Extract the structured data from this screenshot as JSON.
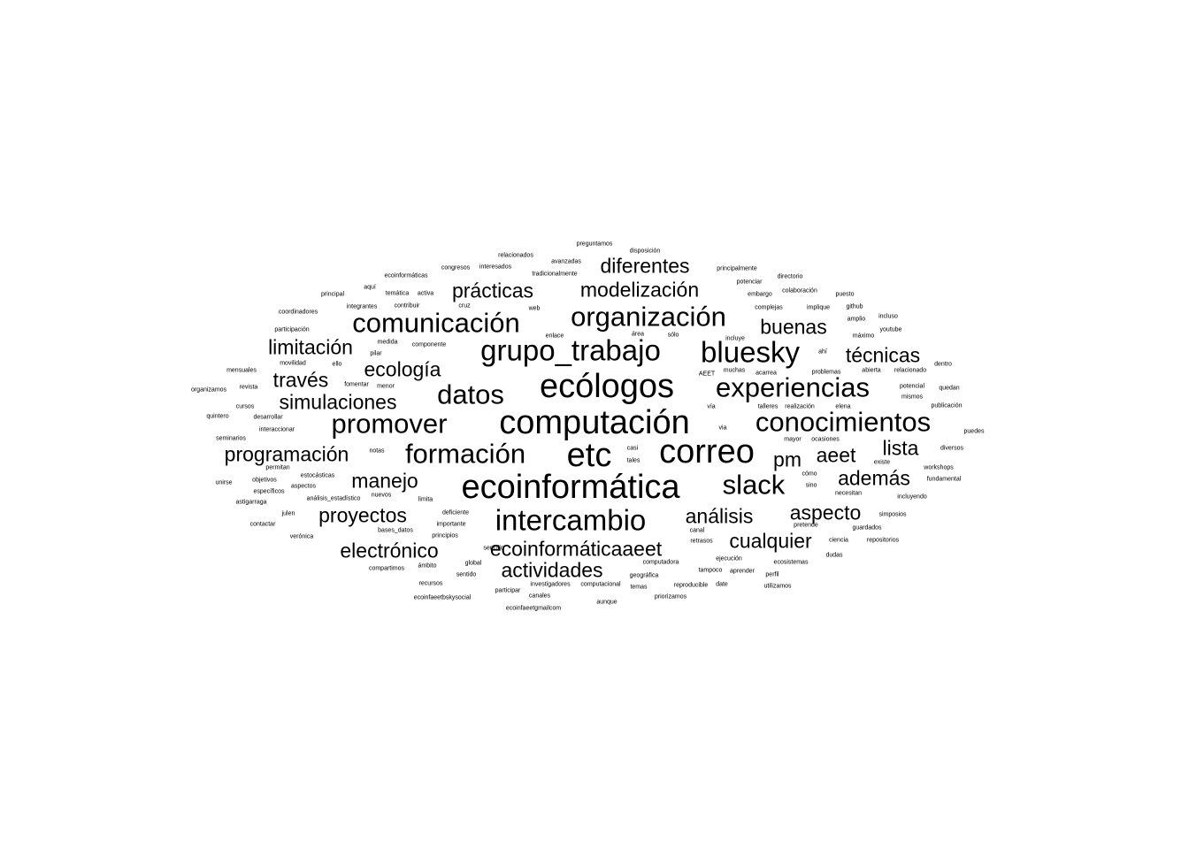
{
  "cloud": {
    "text_color": "#000000",
    "background": "#ffffff",
    "words": [
      {
        "text": "computación",
        "weight": 38
      },
      {
        "text": "ecoinformática",
        "weight": 38
      },
      {
        "text": "ecólogos",
        "weight": 38
      },
      {
        "text": "correo",
        "weight": 38
      },
      {
        "text": "etc",
        "weight": 38
      },
      {
        "text": "grupo_trabajo",
        "weight": 34
      },
      {
        "text": "intercambio",
        "weight": 34
      },
      {
        "text": "experiencias",
        "weight": 32
      },
      {
        "text": "organización",
        "weight": 32
      },
      {
        "text": "comunicación",
        "weight": 32
      },
      {
        "text": "bluesky",
        "weight": 34
      },
      {
        "text": "conocimientos",
        "weight": 32
      },
      {
        "text": "promover",
        "weight": 32
      },
      {
        "text": "formación",
        "weight": 32
      },
      {
        "text": "datos",
        "weight": 32
      },
      {
        "text": "slack",
        "weight": 32
      },
      {
        "text": "simulaciones",
        "weight": 24
      },
      {
        "text": "programación",
        "weight": 24
      },
      {
        "text": "ecoinformáticaaeet",
        "weight": 24
      },
      {
        "text": "actividades",
        "weight": 24
      },
      {
        "text": "electrónico",
        "weight": 24
      },
      {
        "text": "proyectos",
        "weight": 24
      },
      {
        "text": "cualquier",
        "weight": 24
      },
      {
        "text": "análisis",
        "weight": 24
      },
      {
        "text": "aspecto",
        "weight": 24
      },
      {
        "text": "además",
        "weight": 24
      },
      {
        "text": "aeet",
        "weight": 24
      },
      {
        "text": "lista",
        "weight": 24
      },
      {
        "text": "pm",
        "weight": 24
      },
      {
        "text": "manejo",
        "weight": 24
      },
      {
        "text": "técnicas",
        "weight": 24
      },
      {
        "text": "buenas",
        "weight": 24
      },
      {
        "text": "ecología",
        "weight": 24
      },
      {
        "text": "limitación",
        "weight": 24
      },
      {
        "text": "través",
        "weight": 24
      },
      {
        "text": "prácticas",
        "weight": 24
      },
      {
        "text": "modelización",
        "weight": 24
      },
      {
        "text": "diferentes",
        "weight": 24
      },
      {
        "text": "preguntamos",
        "weight": 7
      },
      {
        "text": "disposición",
        "weight": 7
      },
      {
        "text": "relacionados",
        "weight": 7
      },
      {
        "text": "avanzadas",
        "weight": 7
      },
      {
        "text": "congresos",
        "weight": 7
      },
      {
        "text": "interesados",
        "weight": 7
      },
      {
        "text": "principalmente",
        "weight": 7
      },
      {
        "text": "ecoinformáticas",
        "weight": 7
      },
      {
        "text": "tradicionalmente",
        "weight": 7
      },
      {
        "text": "directorio",
        "weight": 7
      },
      {
        "text": "potenciar",
        "weight": 7
      },
      {
        "text": "aquí",
        "weight": 7
      },
      {
        "text": "principal",
        "weight": 7
      },
      {
        "text": "temática",
        "weight": 7
      },
      {
        "text": "activa",
        "weight": 7
      },
      {
        "text": "embargo",
        "weight": 7
      },
      {
        "text": "colaboración",
        "weight": 7
      },
      {
        "text": "puesto",
        "weight": 7
      },
      {
        "text": "integrantes",
        "weight": 7
      },
      {
        "text": "contribuir",
        "weight": 7
      },
      {
        "text": "cruz",
        "weight": 7
      },
      {
        "text": "web",
        "weight": 7
      },
      {
        "text": "complejas",
        "weight": 7
      },
      {
        "text": "implique",
        "weight": 7
      },
      {
        "text": "github",
        "weight": 7
      },
      {
        "text": "coordinadores",
        "weight": 7
      },
      {
        "text": "incluso",
        "weight": 7
      },
      {
        "text": "amplio",
        "weight": 7
      },
      {
        "text": "participación",
        "weight": 7
      },
      {
        "text": "youtube",
        "weight": 7
      },
      {
        "text": "área",
        "weight": 7
      },
      {
        "text": "sólo",
        "weight": 7
      },
      {
        "text": "enlace",
        "weight": 7
      },
      {
        "text": "incluye",
        "weight": 7
      },
      {
        "text": "máximo",
        "weight": 7
      },
      {
        "text": "medida",
        "weight": 7
      },
      {
        "text": "componente",
        "weight": 7
      },
      {
        "text": "pilar",
        "weight": 7
      },
      {
        "text": "ahí",
        "weight": 7
      },
      {
        "text": "movilidad",
        "weight": 7
      },
      {
        "text": "ello",
        "weight": 7
      },
      {
        "text": "mensuales",
        "weight": 7
      },
      {
        "text": "dentro",
        "weight": 7
      },
      {
        "text": "abierta",
        "weight": 7
      },
      {
        "text": "relacionado",
        "weight": 7
      },
      {
        "text": "problemas",
        "weight": 7
      },
      {
        "text": "AEET",
        "weight": 7
      },
      {
        "text": "muchas",
        "weight": 7
      },
      {
        "text": "acarrea",
        "weight": 7
      },
      {
        "text": "revista",
        "weight": 7
      },
      {
        "text": "fomentar",
        "weight": 7
      },
      {
        "text": "menor",
        "weight": 7
      },
      {
        "text": "potencial",
        "weight": 7
      },
      {
        "text": "quedan",
        "weight": 7
      },
      {
        "text": "organizamos",
        "weight": 7
      },
      {
        "text": "mismos",
        "weight": 7
      },
      {
        "text": "cursos",
        "weight": 7
      },
      {
        "text": "vía",
        "weight": 7
      },
      {
        "text": "talleres",
        "weight": 7
      },
      {
        "text": "realización",
        "weight": 7
      },
      {
        "text": "elena",
        "weight": 7
      },
      {
        "text": "publicación",
        "weight": 7
      },
      {
        "text": "quintero",
        "weight": 7
      },
      {
        "text": "desarrollar",
        "weight": 7
      },
      {
        "text": "interaccionar",
        "weight": 7
      },
      {
        "text": "puedes",
        "weight": 7
      },
      {
        "text": "via",
        "weight": 7
      },
      {
        "text": "mayor",
        "weight": 7
      },
      {
        "text": "ocasiones",
        "weight": 7
      },
      {
        "text": "seminarios",
        "weight": 7
      },
      {
        "text": "casi",
        "weight": 7
      },
      {
        "text": "diversos",
        "weight": 7
      },
      {
        "text": "notas",
        "weight": 7
      },
      {
        "text": "permitan",
        "weight": 7
      },
      {
        "text": "tales",
        "weight": 7
      },
      {
        "text": "existe",
        "weight": 7
      },
      {
        "text": "workshops",
        "weight": 7
      },
      {
        "text": "estocásticas",
        "weight": 7
      },
      {
        "text": "cómo",
        "weight": 7
      },
      {
        "text": "objetivos",
        "weight": 7
      },
      {
        "text": "fundamental",
        "weight": 7
      },
      {
        "text": "unirse",
        "weight": 7
      },
      {
        "text": "aspectos",
        "weight": 7
      },
      {
        "text": "sino",
        "weight": 7
      },
      {
        "text": "específicos",
        "weight": 7
      },
      {
        "text": "nuevos",
        "weight": 7
      },
      {
        "text": "necesitan",
        "weight": 7
      },
      {
        "text": "análisis_estadístico",
        "weight": 7
      },
      {
        "text": "limita",
        "weight": 7
      },
      {
        "text": "incluyendo",
        "weight": 7
      },
      {
        "text": "astigarraga",
        "weight": 7
      },
      {
        "text": "julen",
        "weight": 7
      },
      {
        "text": "deficiente",
        "weight": 7
      },
      {
        "text": "simposios",
        "weight": 7
      },
      {
        "text": "contactar",
        "weight": 7
      },
      {
        "text": "importante",
        "weight": 7
      },
      {
        "text": "canal",
        "weight": 7
      },
      {
        "text": "pretende",
        "weight": 7
      },
      {
        "text": "guardados",
        "weight": 7
      },
      {
        "text": "bases_datos",
        "weight": 7
      },
      {
        "text": "verónica",
        "weight": 7
      },
      {
        "text": "principios",
        "weight": 7
      },
      {
        "text": "retrasos",
        "weight": 7
      },
      {
        "text": "ciencia",
        "weight": 7
      },
      {
        "text": "repositorios",
        "weight": 7
      },
      {
        "text": "sencillo",
        "weight": 7
      },
      {
        "text": "ejecución",
        "weight": 7
      },
      {
        "text": "dudas",
        "weight": 7
      },
      {
        "text": "global",
        "weight": 7
      },
      {
        "text": "computadora",
        "weight": 7
      },
      {
        "text": "ecosistemas",
        "weight": 7
      },
      {
        "text": "compartimos",
        "weight": 7
      },
      {
        "text": "ámbito",
        "weight": 7
      },
      {
        "text": "tampoco",
        "weight": 7
      },
      {
        "text": "aprender",
        "weight": 7
      },
      {
        "text": "sentido",
        "weight": 7
      },
      {
        "text": "geográfica",
        "weight": 7
      },
      {
        "text": "perfil",
        "weight": 7
      },
      {
        "text": "recursos",
        "weight": 7
      },
      {
        "text": "investigadores",
        "weight": 7
      },
      {
        "text": "computacional",
        "weight": 7
      },
      {
        "text": "reproducible",
        "weight": 7
      },
      {
        "text": "date",
        "weight": 7
      },
      {
        "text": "utilizamos",
        "weight": 7
      },
      {
        "text": "participar",
        "weight": 7
      },
      {
        "text": "temas",
        "weight": 7
      },
      {
        "text": "canales",
        "weight": 7
      },
      {
        "text": "priorizamos",
        "weight": 7
      },
      {
        "text": "ecoinfaeetbskysocial",
        "weight": 7
      },
      {
        "text": "aunque",
        "weight": 7
      },
      {
        "text": "ecoinfaeetgmailcom",
        "weight": 7
      }
    ]
  }
}
